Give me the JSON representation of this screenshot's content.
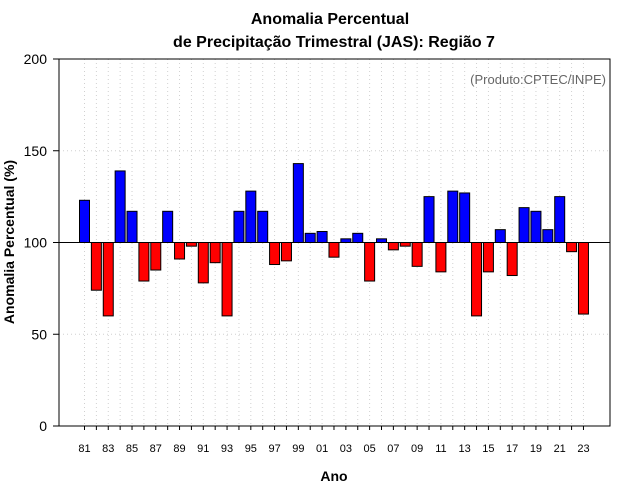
{
  "chart_data": {
    "type": "bar",
    "title_line1": "Anomalia Percentual",
    "title_line2": "de Precipitação Trimestral (JAS): Região 7",
    "xlabel": "Ano",
    "ylabel": "Anomalia Percentual (%)",
    "source": "(Produto:CPTEC/INPE)",
    "baseline": 100,
    "ylim": [
      0,
      200
    ],
    "yticks": [
      "0",
      "50",
      "100",
      "150",
      "200"
    ],
    "grid": true,
    "colors": {
      "above": "#0000ff",
      "below": "#ff0000",
      "edge": "#000000"
    },
    "xtick_labels": [
      "81",
      "83",
      "85",
      "87",
      "89",
      "91",
      "93",
      "95",
      "97",
      "99",
      "01",
      "03",
      "05",
      "07",
      "09",
      "11",
      "13",
      "15",
      "17",
      "19",
      "21",
      "23"
    ],
    "categories": [
      "1981",
      "1982",
      "1983",
      "1984",
      "1985",
      "1986",
      "1987",
      "1988",
      "1989",
      "1990",
      "1991",
      "1992",
      "1993",
      "1994",
      "1995",
      "1996",
      "1997",
      "1998",
      "1999",
      "2000",
      "2001",
      "2002",
      "2003",
      "2004",
      "2005",
      "2006",
      "2007",
      "2008",
      "2009",
      "2010",
      "2011",
      "2012",
      "2013",
      "2014",
      "2015",
      "2016",
      "2017",
      "2018",
      "2019",
      "2020",
      "2021",
      "2022",
      "2023"
    ],
    "values": [
      123,
      74,
      60,
      139,
      117,
      79,
      85,
      117,
      91,
      98,
      78,
      89,
      60,
      117,
      128,
      117,
      88,
      90,
      143,
      105,
      106,
      92,
      102,
      105,
      79,
      102,
      96,
      98,
      87,
      125,
      84,
      128,
      127,
      60,
      84,
      107,
      82,
      119,
      117,
      107,
      125,
      95,
      61
    ]
  }
}
